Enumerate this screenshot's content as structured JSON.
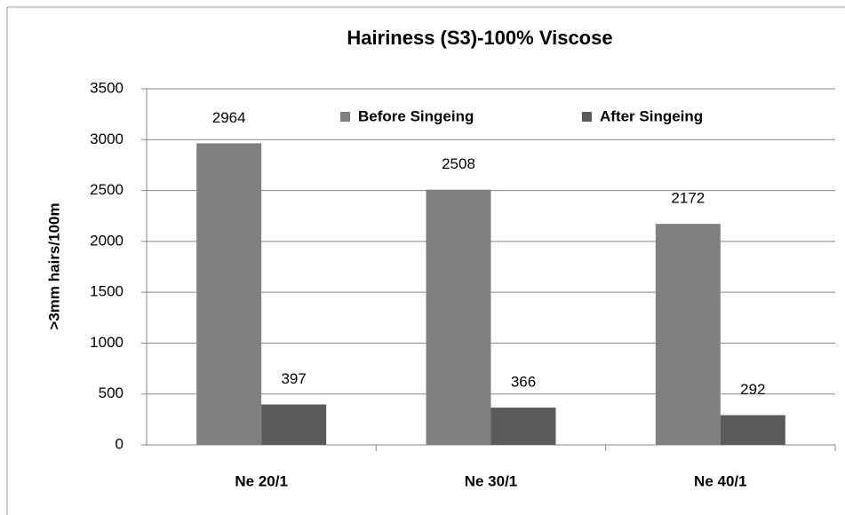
{
  "chart_data": {
    "type": "bar",
    "title": "Hairiness (S3)-100% Viscose",
    "y_label": ">3mm hairs/100m",
    "categories": [
      "Ne 20/1",
      "Ne 30/1",
      "Ne 40/1"
    ],
    "series": [
      {
        "name": "Before Singeing",
        "color": "#808080",
        "values": [
          2964,
          2508,
          2172
        ]
      },
      {
        "name": "After Singeing",
        "color": "#5a5a5a",
        "values": [
          397,
          366,
          292
        ]
      }
    ],
    "ylim": [
      0,
      3500
    ],
    "yticks": [
      0,
      500,
      1000,
      1500,
      2000,
      2500,
      3000,
      3500
    ],
    "grid": true,
    "legend": "top"
  }
}
